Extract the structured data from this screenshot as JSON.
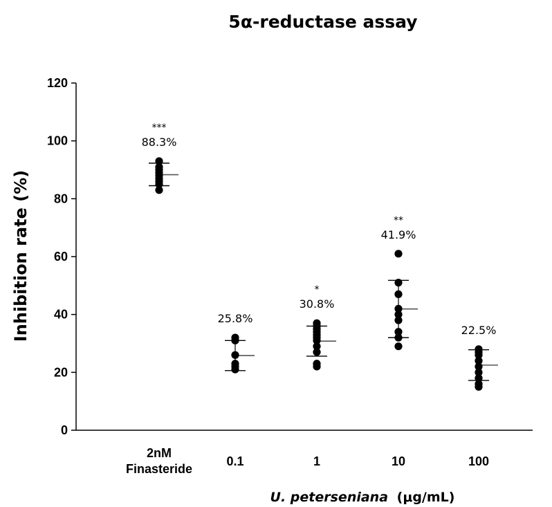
{
  "chart_data": {
    "type": "scatter",
    "title": "5α-reductase assay",
    "ylabel": "Inhibition rate (%)",
    "xlabel_italic": "U. peterseniana",
    "xlabel_unit": "(μg/mL)",
    "ylim": [
      0,
      120
    ],
    "yticks": [
      "0",
      "20",
      "40",
      "60",
      "80",
      "100",
      "120"
    ],
    "grid": false,
    "categories": [
      {
        "label_lines": [
          "2nM",
          "Finasteride"
        ],
        "points": [
          83,
          85,
          86,
          87,
          88,
          89,
          90,
          91,
          93
        ],
        "mean": 88.3,
        "sd_upper": 92.3,
        "sd_lower": 84.5,
        "significance": "***",
        "mean_label": "88.3%"
      },
      {
        "label_lines": [
          "0.1"
        ],
        "points": [
          21,
          22,
          23,
          26,
          31,
          32
        ],
        "mean": 25.8,
        "sd_upper": 31,
        "sd_lower": 20.6,
        "significance": "",
        "mean_label": "25.8%"
      },
      {
        "label_lines": [
          "1"
        ],
        "points": [
          22,
          23,
          27,
          29,
          31,
          32,
          33,
          34,
          35,
          36,
          37
        ],
        "mean": 30.8,
        "sd_upper": 36,
        "sd_lower": 25.6,
        "significance": "*",
        "mean_label": "30.8%"
      },
      {
        "label_lines": [
          "10"
        ],
        "points": [
          29,
          32,
          34,
          38,
          40,
          42,
          47,
          51,
          61
        ],
        "mean": 41.9,
        "sd_upper": 51.8,
        "sd_lower": 32,
        "significance": "**",
        "mean_label": "41.9%"
      },
      {
        "label_lines": [
          "100"
        ],
        "points": [
          15,
          16,
          18,
          20,
          22,
          24,
          26,
          27,
          28
        ],
        "mean": 22.5,
        "sd_upper": 27.8,
        "sd_lower": 17.2,
        "significance": "",
        "mean_label": "22.5%"
      }
    ]
  }
}
